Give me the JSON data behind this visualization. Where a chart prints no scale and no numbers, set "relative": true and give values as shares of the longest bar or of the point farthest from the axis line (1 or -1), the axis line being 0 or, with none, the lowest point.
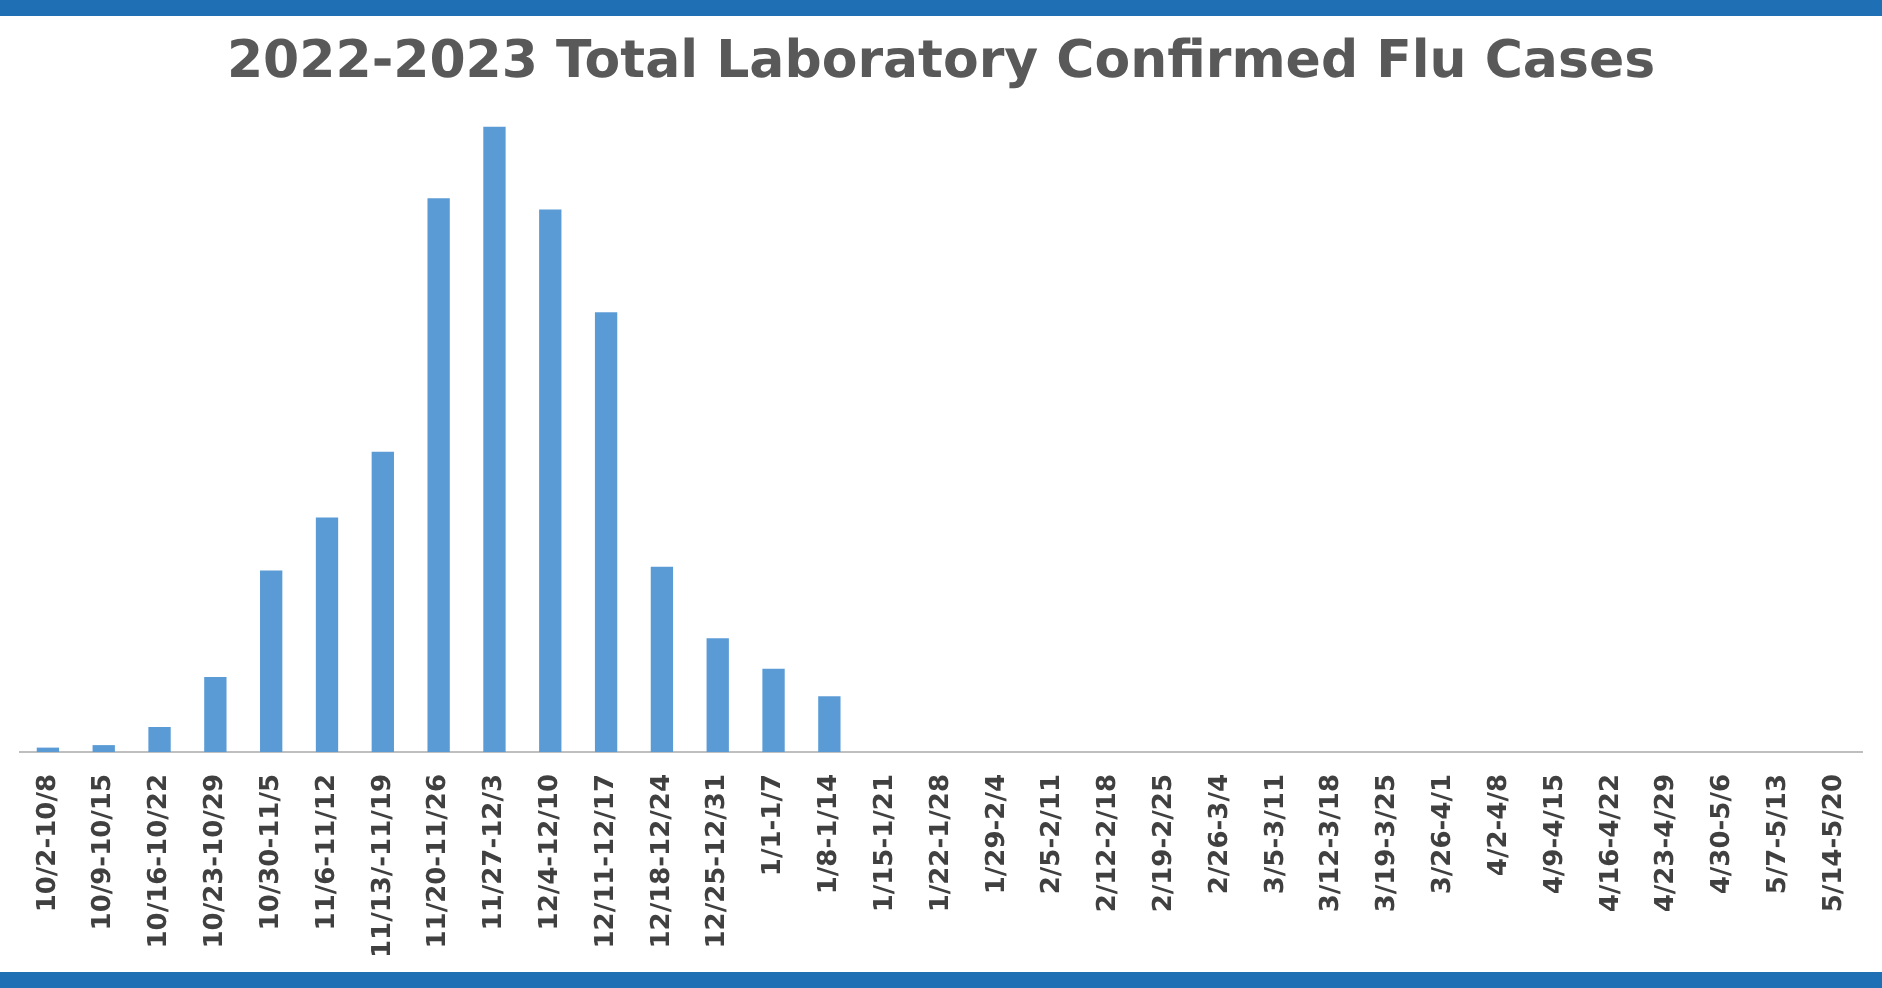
{
  "chart_data": {
    "type": "bar",
    "title": "2022-2023 Total Laboratory Confirmed Flu Cases",
    "relative": true,
    "color": "#5b9bd5",
    "categories": [
      "10/2-10/8",
      "10/9-10/15",
      "10/16-10/22",
      "10/23-10/29",
      "10/30-11/5",
      "11/6-11/12",
      "11/13/-11/19",
      "11/20-11/26",
      "11/27-12/3",
      "12/4-12/10",
      "12/11-12/17",
      "12/18-12/24",
      "12/25-12/31",
      "1/1-1/7",
      "1/8-1/14",
      "1/15-1/21",
      "1/22-1/28",
      "1/29-2/4",
      "2/5-2/11",
      "2/12-2/18",
      "2/19-2/25",
      "2/26-3/4",
      "3/5-3/11",
      "3/12-3/18",
      "3/19-3/25",
      "3/26-4/1",
      "4/2-4/8",
      "4/9-4/15",
      "4/16-4/22",
      "4/23-4/29",
      "4/30-5/6",
      "5/7-5/13",
      "5/14-5/20"
    ],
    "values": [
      0.007,
      0.011,
      0.04,
      0.12,
      0.29,
      0.375,
      0.48,
      0.885,
      1,
      0.867,
      0.703,
      0.296,
      0.182,
      0.133,
      0.089,
      0,
      0,
      0,
      0,
      0,
      0,
      0,
      0,
      0,
      0,
      0,
      0,
      0,
      0,
      0,
      0,
      0,
      0
    ],
    "legend": false
  }
}
